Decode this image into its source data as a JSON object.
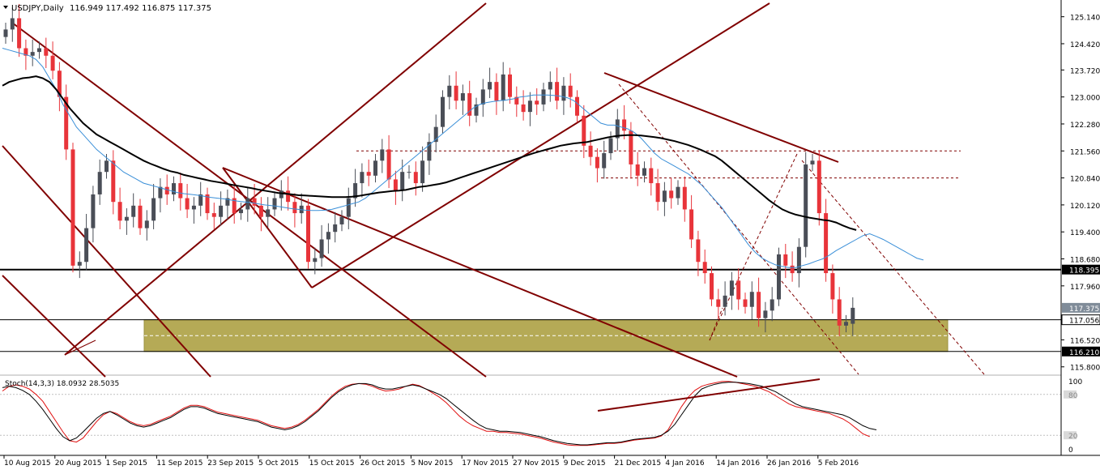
{
  "header": {
    "symbol": "USDJPY,Daily",
    "ohlc": "116.949 117.492 116.875 117.375",
    "menu_icon": "triangle-down-icon"
  },
  "stoch_header": {
    "label": "Stoch(14,3,3) 18.0932 28.5035"
  },
  "colors": {
    "bull": "#4a4e57",
    "bear": "#e8343a",
    "sma_fast": "#3a8fd8",
    "sma_slow": "#000000",
    "trendline": "#800000",
    "zone_fill": "#b5aa56",
    "stoch_main": "#000000",
    "stoch_signal": "#e01010"
  },
  "chart_data": [
    {
      "type": "candlestick",
      "title": "USDJPY,Daily",
      "ohlc_last": {
        "open": 116.949,
        "high": 117.492,
        "low": 116.875,
        "close": 117.375
      },
      "ylim": [
        115.6,
        125.5
      ],
      "y_ticks": [
        "125.140",
        "124.420",
        "123.720",
        "123.000",
        "122.280",
        "121.560",
        "120.840",
        "120.120",
        "119.400",
        "118.680",
        "117.960",
        "116.520",
        "115.800"
      ],
      "x_ticks": [
        "10 Aug 2015",
        "20 Aug 2015",
        "1 Sep 2015",
        "11 Sep 2015",
        "23 Sep 2015",
        "5 Oct 2015",
        "15 Oct 2015",
        "26 Oct 2015",
        "5 Nov 2015",
        "17 Nov 2015",
        "27 Nov 2015",
        "9 Dec 2015",
        "21 Dec 2015",
        "4 Jan 2016",
        "14 Jan 2016",
        "26 Jan 2016",
        "5 Feb 2016"
      ],
      "price_labels": [
        {
          "text": "118.395",
          "value": 118.395,
          "style": "dark"
        },
        {
          "text": "117.375",
          "value": 117.375,
          "style": "grey"
        },
        {
          "text": "117.056",
          "value": 117.056,
          "style": "white"
        },
        {
          "text": "116.210",
          "value": 116.21,
          "style": "dark"
        }
      ],
      "horizontal_lines": [
        118.395,
        117.056,
        116.21
      ],
      "support_zone": [
        116.21,
        117.056
      ],
      "dotted_levels": [
        121.56,
        120.84
      ],
      "series": [
        {
          "name": "",
          "kind": "sma",
          "values": [
            123.3,
            123.4,
            123.45,
            123.5,
            123.52,
            123.55,
            123.5,
            123.4,
            123.2,
            122.95,
            122.7,
            122.5,
            122.3,
            122.15,
            122.0,
            121.9,
            121.8,
            121.7,
            121.6,
            121.5,
            121.4,
            121.3,
            121.22,
            121.15,
            121.08,
            121.02,
            120.98,
            120.92,
            120.88,
            120.84,
            120.8,
            120.76,
            120.73,
            120.7,
            120.66,
            120.63,
            120.6,
            120.57,
            120.53,
            120.5,
            120.47,
            120.44,
            120.42,
            120.4,
            120.38,
            120.37,
            120.36,
            120.35,
            120.34,
            120.33,
            120.33,
            120.33,
            120.34,
            120.36,
            120.39,
            120.42,
            120.45,
            120.47,
            120.49,
            120.5,
            120.52,
            120.56,
            120.6,
            120.62,
            120.65,
            120.68,
            120.72,
            120.78,
            120.84,
            120.9,
            120.96,
            121.02,
            121.08,
            121.14,
            121.2,
            121.26,
            121.32,
            121.38,
            121.44,
            121.5,
            121.55,
            121.6,
            121.65,
            121.7,
            121.73,
            121.76,
            121.78,
            121.8,
            121.84,
            121.88,
            121.92,
            121.95,
            121.97,
            121.98,
            121.98,
            121.97,
            121.95,
            121.93,
            121.9,
            121.86,
            121.82,
            121.77,
            121.72,
            121.65,
            121.58,
            121.5,
            121.42,
            121.3,
            121.15,
            121.0,
            120.85,
            120.7,
            120.55,
            120.4,
            120.25,
            120.12,
            120.0,
            119.92,
            119.86,
            119.82,
            119.78,
            119.75,
            119.72,
            119.7,
            119.65,
            119.57,
            119.5,
            119.45
          ]
        },
        {
          "name": "",
          "kind": "sma",
          "values": [
            124.3,
            124.25,
            124.2,
            124.15,
            124.1,
            124.0,
            123.8,
            123.5,
            123.2,
            122.8,
            122.5,
            122.2,
            122.0,
            121.8,
            121.6,
            121.45,
            121.3,
            121.15,
            121.0,
            120.9,
            120.8,
            120.7,
            120.65,
            120.6,
            120.55,
            120.5,
            120.45,
            120.42,
            120.4,
            120.38,
            120.35,
            120.32,
            120.3,
            120.28,
            120.25,
            120.22,
            120.2,
            120.18,
            120.15,
            120.12,
            120.1,
            120.08,
            120.05,
            120.02,
            120.0,
            119.98,
            119.97,
            119.97,
            119.98,
            120.0,
            120.05,
            120.1,
            120.15,
            120.2,
            120.3,
            120.45,
            120.6,
            120.75,
            120.9,
            121.05,
            121.2,
            121.35,
            121.5,
            121.65,
            121.8,
            121.95,
            122.1,
            122.25,
            122.4,
            122.55,
            122.7,
            122.8,
            122.85,
            122.88,
            122.9,
            122.92,
            122.95,
            123.0,
            123.02,
            123.05,
            123.05,
            123.05,
            123.04,
            123.02,
            122.98,
            122.9,
            122.75,
            122.6,
            122.45,
            122.3,
            122.25,
            122.25,
            122.2,
            122.15,
            122.05,
            121.9,
            121.7,
            121.5,
            121.35,
            121.25,
            121.15,
            121.05,
            120.95,
            120.8,
            120.65,
            120.45,
            120.25,
            120.05,
            119.8,
            119.55,
            119.3,
            119.05,
            118.85,
            118.7,
            118.6,
            118.52,
            118.48,
            118.45,
            118.45,
            118.5,
            118.55,
            118.62,
            118.68,
            118.78,
            118.9,
            119.0,
            119.1,
            119.2,
            119.3,
            119.35,
            119.28,
            119.2,
            119.1,
            119.0,
            118.9,
            118.8,
            118.7,
            118.65
          ]
        }
      ]
    },
    {
      "type": "line",
      "title": "Stoch(14,3,3) 18.0932 28.5035",
      "ylim": [
        0,
        100
      ],
      "y_ticks": [
        "100",
        "80",
        "20",
        "0"
      ],
      "levels": [
        80,
        20
      ],
      "series": [
        {
          "name": "",
          "values": [
            90,
            92,
            90,
            86,
            80,
            70,
            58,
            44,
            30,
            18,
            12,
            16,
            25,
            35,
            45,
            52,
            55,
            50,
            44,
            38,
            34,
            32,
            34,
            38,
            42,
            46,
            52,
            58,
            62,
            62,
            60,
            56,
            52,
            50,
            48,
            46,
            44,
            42,
            40,
            36,
            32,
            30,
            28,
            30,
            34,
            40,
            48,
            56,
            66,
            76,
            84,
            90,
            94,
            96,
            96,
            94,
            90,
            88,
            88,
            90,
            92,
            94,
            92,
            88,
            84,
            80,
            74,
            66,
            58,
            50,
            42,
            35,
            30,
            28,
            26,
            26,
            25,
            24,
            22,
            20,
            18,
            15,
            12,
            10,
            8,
            7,
            6,
            6,
            7,
            8,
            9,
            9,
            10,
            12,
            14,
            15,
            16,
            17,
            20,
            26,
            36,
            50,
            64,
            78,
            88,
            92,
            95,
            97,
            98,
            98,
            97,
            96,
            94,
            92,
            88,
            84,
            78,
            72,
            66,
            62,
            60,
            58,
            56,
            54,
            52,
            50,
            46,
            40,
            34,
            30,
            28
          ]
        },
        {
          "name": "",
          "values": [
            85,
            92,
            94,
            92,
            88,
            80,
            70,
            55,
            40,
            25,
            12,
            10,
            16,
            28,
            40,
            50,
            55,
            52,
            46,
            40,
            36,
            34,
            36,
            40,
            44,
            48,
            54,
            60,
            64,
            64,
            62,
            58,
            54,
            52,
            50,
            48,
            46,
            44,
            42,
            38,
            34,
            32,
            30,
            32,
            36,
            42,
            50,
            58,
            68,
            78,
            86,
            92,
            95,
            96,
            95,
            92,
            88,
            85,
            86,
            88,
            92,
            95,
            93,
            88,
            82,
            76,
            68,
            58,
            48,
            40,
            34,
            30,
            26,
            26,
            24,
            24,
            23,
            22,
            20,
            18,
            16,
            13,
            10,
            8,
            6,
            5,
            5,
            5,
            6,
            7,
            8,
            8,
            9,
            11,
            13,
            14,
            15,
            16,
            19,
            28,
            45,
            62,
            76,
            86,
            92,
            95,
            97,
            99,
            99,
            98,
            96,
            94,
            92,
            88,
            84,
            78,
            72,
            66,
            62,
            60,
            58,
            56,
            54,
            52,
            48,
            44,
            38,
            30,
            22,
            18
          ]
        }
      ]
    }
  ]
}
